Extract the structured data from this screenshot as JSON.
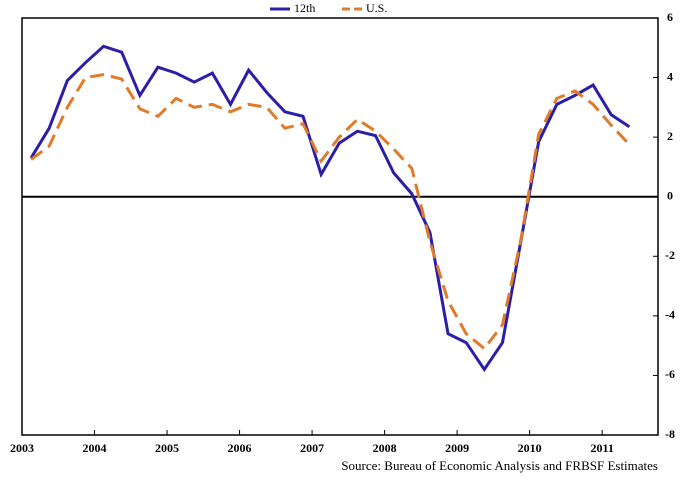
{
  "chart_data": {
    "type": "line",
    "source": "Source: Bureau of Economic Analysis  and FRBSF Estimates",
    "x": [
      2003.125,
      2003.375,
      2003.625,
      2003.875,
      2004.125,
      2004.375,
      2004.625,
      2004.875,
      2005.125,
      2005.375,
      2005.625,
      2005.875,
      2006.125,
      2006.375,
      2006.625,
      2006.875,
      2007.125,
      2007.375,
      2007.625,
      2007.875,
      2008.125,
      2008.375,
      2008.625,
      2008.875,
      2009.125,
      2009.375,
      2009.625,
      2009.875,
      2010.125,
      2010.375,
      2010.625,
      2010.875,
      2011.125,
      2011.375
    ],
    "series": [
      {
        "name": "12th",
        "color": "#2b1fa8",
        "dash": false,
        "values": [
          1.3,
          2.3,
          3.9,
          4.5,
          5.05,
          4.85,
          3.4,
          4.35,
          4.15,
          3.85,
          4.15,
          3.1,
          4.25,
          3.5,
          2.85,
          2.7,
          0.75,
          1.8,
          2.2,
          2.05,
          0.8,
          0.1,
          -1.2,
          -4.6,
          -4.9,
          -5.8,
          -4.9,
          -1.55,
          1.85,
          3.1,
          3.4,
          3.75,
          2.75,
          2.35
        ]
      },
      {
        "name": "U.S.",
        "color": "#e07b2a",
        "dash": true,
        "values": [
          1.25,
          1.7,
          3.0,
          4.0,
          4.1,
          3.95,
          2.95,
          2.7,
          3.3,
          3.0,
          3.1,
          2.85,
          3.1,
          3.0,
          2.3,
          2.45,
          1.2,
          2.0,
          2.6,
          2.2,
          1.6,
          0.95,
          -1.5,
          -3.5,
          -4.6,
          -5.1,
          -4.3,
          -1.5,
          2.1,
          3.3,
          3.55,
          3.1,
          2.4,
          1.75
        ]
      }
    ],
    "xlim": [
      2003,
      2011.77
    ],
    "xticks": [
      2003,
      2004,
      2005,
      2006,
      2007,
      2008,
      2009,
      2010,
      2011
    ],
    "ylim": [
      -8,
      6
    ],
    "yticks": [
      -8,
      -6,
      -4,
      -2,
      0,
      2,
      4,
      6
    ],
    "legend": "top"
  }
}
